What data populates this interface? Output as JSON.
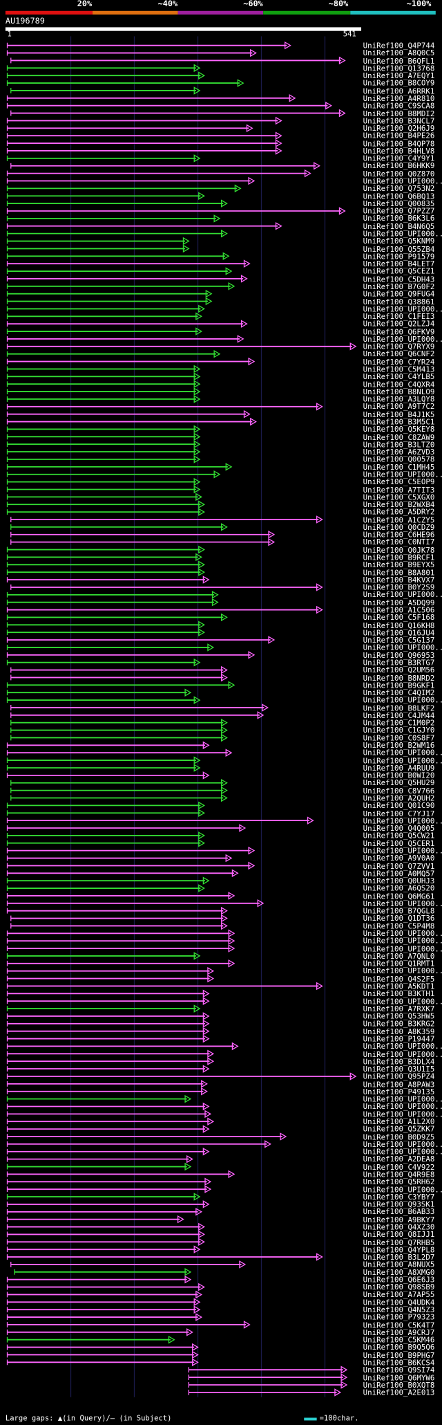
{
  "legend": {
    "labels": [
      "20%",
      "~40%",
      "~60%",
      "~80%",
      "~100%"
    ],
    "colors": [
      "#e01010",
      "#e07010",
      "#a020a0",
      "#10a010",
      "#20c0c0"
    ]
  },
  "query": {
    "id": "AU196789",
    "start": "1",
    "end": "541"
  },
  "colors": {
    "magenta": "#ff66ff",
    "green": "#33dd33",
    "grid": "#1a1a4a"
  },
  "hits": [
    {
      "label": "UniRef100_Q4P744",
      "c": "m",
      "s": 8,
      "e": 320
    },
    {
      "label": "UniRef100_A8Q0C5",
      "c": "m",
      "s": 8,
      "e": 282
    },
    {
      "label": "UniRef100_B6QFL1",
      "c": "m",
      "s": 12,
      "e": 380
    },
    {
      "label": "UniRef100_Q13768",
      "c": "g",
      "s": 8,
      "e": 220
    },
    {
      "label": "UniRef100_A7EQY1",
      "c": "g",
      "s": 8,
      "e": 225
    },
    {
      "label": "UniRef100_B8COY9",
      "c": "g",
      "s": 8,
      "e": 268
    },
    {
      "label": "UniRef100_A6RRK1",
      "c": "g",
      "s": 12,
      "e": 220
    },
    {
      "label": "UniRef100_A4R810",
      "c": "m",
      "s": 8,
      "e": 325
    },
    {
      "label": "UniRef100_C9SCA8",
      "c": "m",
      "s": 8,
      "e": 365
    },
    {
      "label": "UniRef100_B8MDI2",
      "c": "m",
      "s": 12,
      "e": 380
    },
    {
      "label": "UniRef100_B3NCL7",
      "c": "m",
      "s": 8,
      "e": 310
    },
    {
      "label": "UniRef100_Q2H6J9",
      "c": "m",
      "s": 8,
      "e": 278
    },
    {
      "label": "UniRef100_B4PE26",
      "c": "m",
      "s": 8,
      "e": 310
    },
    {
      "label": "UniRef100_B4QP78",
      "c": "m",
      "s": 8,
      "e": 310
    },
    {
      "label": "UniRef100_B4HLV8",
      "c": "m",
      "s": 8,
      "e": 310
    },
    {
      "label": "UniRef100_C4Y9Y1",
      "c": "g",
      "s": 8,
      "e": 220
    },
    {
      "label": "UniRef100_B6HKK9",
      "c": "m",
      "s": 12,
      "e": 352
    },
    {
      "label": "UniRef100_Q0Z870",
      "c": "m",
      "s": 8,
      "e": 342
    },
    {
      "label": "UniRef100_UPI000...",
      "c": "m",
      "s": 8,
      "e": 280
    },
    {
      "label": "UniRef100_Q753N2",
      "c": "g",
      "s": 8,
      "e": 265
    },
    {
      "label": "UniRef100_Q6BQ13",
      "c": "g",
      "s": 8,
      "e": 225
    },
    {
      "label": "UniRef100_Q00835",
      "c": "g",
      "s": 8,
      "e": 250
    },
    {
      "label": "UniRef100_Q7PZZ7",
      "c": "m",
      "s": 8,
      "e": 380
    },
    {
      "label": "UniRef100_B6K3L6",
      "c": "g",
      "s": 8,
      "e": 242
    },
    {
      "label": "UniRef100_B4N6Q5",
      "c": "m",
      "s": 8,
      "e": 310
    },
    {
      "label": "UniRef100_UPI000...",
      "c": "g",
      "s": 8,
      "e": 250
    },
    {
      "label": "UniRef100_Q5KNM9",
      "c": "g",
      "s": 8,
      "e": 208
    },
    {
      "label": "UniRef100_Q55ZB4",
      "c": "g",
      "s": 8,
      "e": 208
    },
    {
      "label": "UniRef100_P91579",
      "c": "g",
      "s": 8,
      "e": 252
    },
    {
      "label": "UniRef100_B4LET7",
      "c": "m",
      "s": 8,
      "e": 275
    },
    {
      "label": "UniRef100_Q5CEZ1",
      "c": "g",
      "s": 8,
      "e": 255
    },
    {
      "label": "UniRef100_C5DH43",
      "c": "m",
      "s": 8,
      "e": 272
    },
    {
      "label": "UniRef100_B7G0F2",
      "c": "g",
      "s": 8,
      "e": 258
    },
    {
      "label": "UniRef100_Q9FUG4",
      "c": "g",
      "s": 8,
      "e": 233
    },
    {
      "label": "UniRef100_Q38861",
      "c": "g",
      "s": 8,
      "e": 233
    },
    {
      "label": "UniRef100_UPI000...",
      "c": "g",
      "s": 8,
      "e": 225
    },
    {
      "label": "UniRef100_C1FEI3",
      "c": "g",
      "s": 8,
      "e": 222
    },
    {
      "label": "UniRef100_Q2LZJ4",
      "c": "m",
      "s": 8,
      "e": 272
    },
    {
      "label": "UniRef100_Q6FKV9",
      "c": "g",
      "s": 8,
      "e": 222
    },
    {
      "label": "UniRef100_UPI000...",
      "c": "m",
      "s": 8,
      "e": 268
    },
    {
      "label": "UniRef100_Q7RYX9",
      "c": "m",
      "s": 8,
      "e": 392
    },
    {
      "label": "UniRef100_Q6CNF2",
      "c": "g",
      "s": 8,
      "e": 242
    },
    {
      "label": "UniRef100_C7YR24",
      "c": "m",
      "s": 8,
      "e": 280
    },
    {
      "label": "UniRef100_C5M413",
      "c": "g",
      "s": 8,
      "e": 220
    },
    {
      "label": "UniRef100_C4YLB5",
      "c": "g",
      "s": 8,
      "e": 220
    },
    {
      "label": "UniRef100_C4QXR4",
      "c": "g",
      "s": 8,
      "e": 220
    },
    {
      "label": "UniRef100_B8NLO9",
      "c": "g",
      "s": 8,
      "e": 220
    },
    {
      "label": "UniRef100_A3LQY8",
      "c": "g",
      "s": 8,
      "e": 220
    },
    {
      "label": "UniRef100_A9T7C2",
      "c": "m",
      "s": 8,
      "e": 355
    },
    {
      "label": "UniRef100_B4J1K5",
      "c": "m",
      "s": 8,
      "e": 275
    },
    {
      "label": "UniRef100_B3M5C1",
      "c": "m",
      "s": 8,
      "e": 282
    },
    {
      "label": "UniRef100_Q5KEY8",
      "c": "g",
      "s": 8,
      "e": 220
    },
    {
      "label": "UniRef100_C8ZAW9",
      "c": "g",
      "s": 8,
      "e": 220
    },
    {
      "label": "UniRef100_B3LTZ0",
      "c": "g",
      "s": 8,
      "e": 220
    },
    {
      "label": "UniRef100_A6ZVD3",
      "c": "g",
      "s": 8,
      "e": 220
    },
    {
      "label": "UniRef100_Q00578",
      "c": "g",
      "s": 8,
      "e": 220
    },
    {
      "label": "UniRef100_C1MH45",
      "c": "g",
      "s": 8,
      "e": 255
    },
    {
      "label": "UniRef100_UPI000...",
      "c": "g",
      "s": 8,
      "e": 242
    },
    {
      "label": "UniRef100_C5EOP9",
      "c": "g",
      "s": 8,
      "e": 220
    },
    {
      "label": "UniRef100_A7TIT3",
      "c": "g",
      "s": 8,
      "e": 220
    },
    {
      "label": "UniRef100_C5XGX0",
      "c": "g",
      "s": 8,
      "e": 222
    },
    {
      "label": "UniRef100_B2WXB4",
      "c": "g",
      "s": 8,
      "e": 225
    },
    {
      "label": "UniRef100_A5DRY2",
      "c": "g",
      "s": 8,
      "e": 225
    },
    {
      "label": "UniRef100_A1CZY5",
      "c": "m",
      "s": 12,
      "e": 355
    },
    {
      "label": "UniRef100_Q0CDZ9",
      "c": "g",
      "s": 12,
      "e": 250
    },
    {
      "label": "UniRef100_C6HE96",
      "c": "m",
      "s": 12,
      "e": 302
    },
    {
      "label": "UniRef100_C0NTI7",
      "c": "m",
      "s": 12,
      "e": 302
    },
    {
      "label": "UniRef100_Q0JK78",
      "c": "g",
      "s": 8,
      "e": 225
    },
    {
      "label": "UniRef100_B9RCF1",
      "c": "g",
      "s": 8,
      "e": 222
    },
    {
      "label": "UniRef100_B9EYX5",
      "c": "g",
      "s": 8,
      "e": 225
    },
    {
      "label": "UniRef100_B8A801",
      "c": "g",
      "s": 8,
      "e": 225
    },
    {
      "label": "UniRef100_B4KVX7",
      "c": "m",
      "s": 8,
      "e": 230
    },
    {
      "label": "UniRef100_B0Y2S9",
      "c": "m",
      "s": 12,
      "e": 355
    },
    {
      "label": "UniRef100_UPI000...",
      "c": "g",
      "s": 8,
      "e": 240
    },
    {
      "label": "UniRef100_A5DQ99",
      "c": "g",
      "s": 8,
      "e": 240
    },
    {
      "label": "UniRef100_A1C506",
      "c": "m",
      "s": 8,
      "e": 355
    },
    {
      "label": "UniRef100_C5F168",
      "c": "g",
      "s": 8,
      "e": 250
    },
    {
      "label": "UniRef100_Q16KH8",
      "c": "g",
      "s": 8,
      "e": 225
    },
    {
      "label": "UniRef100_Q16JU4",
      "c": "g",
      "s": 8,
      "e": 225
    },
    {
      "label": "UniRef100_C5G137",
      "c": "m",
      "s": 8,
      "e": 302
    },
    {
      "label": "UniRef100_UPI000...",
      "c": "g",
      "s": 8,
      "e": 235
    },
    {
      "label": "UniRef100_Q96953",
      "c": "m",
      "s": 8,
      "e": 280
    },
    {
      "label": "UniRef100_B3RTG7",
      "c": "g",
      "s": 8,
      "e": 220
    },
    {
      "label": "UniRef100_Q2UM56",
      "c": "m",
      "s": 12,
      "e": 250
    },
    {
      "label": "UniRef100_B8NRD2",
      "c": "m",
      "s": 12,
      "e": 250
    },
    {
      "label": "UniRef100_B9GKF1",
      "c": "g",
      "s": 8,
      "e": 258
    },
    {
      "label": "UniRef100_C4QIM2",
      "c": "g",
      "s": 8,
      "e": 210
    },
    {
      "label": "UniRef100_UPI000...",
      "c": "g",
      "s": 8,
      "e": 220
    },
    {
      "label": "UniRef100_B8LKF2",
      "c": "m",
      "s": 12,
      "e": 295
    },
    {
      "label": "UniRef100_C4JM44",
      "c": "m",
      "s": 12,
      "e": 290
    },
    {
      "label": "UniRef100_C1M0P2",
      "c": "g",
      "s": 12,
      "e": 250
    },
    {
      "label": "UniRef100_C1GJY0",
      "c": "g",
      "s": 12,
      "e": 250
    },
    {
      "label": "UniRef100_C0S8F7",
      "c": "g",
      "s": 12,
      "e": 250
    },
    {
      "label": "UniRef100_B2WM16",
      "c": "m",
      "s": 8,
      "e": 230
    },
    {
      "label": "UniRef100_UPI000...",
      "c": "m",
      "s": 8,
      "e": 255
    },
    {
      "label": "UniRef100_UPI000...",
      "c": "g",
      "s": 8,
      "e": 220
    },
    {
      "label": "UniRef100_A4RUU9",
      "c": "g",
      "s": 8,
      "e": 220
    },
    {
      "label": "UniRef100_B0WI20",
      "c": "m",
      "s": 8,
      "e": 230
    },
    {
      "label": "UniRef100_Q5HU29",
      "c": "g",
      "s": 12,
      "e": 250
    },
    {
      "label": "UniRef100_C8V766",
      "c": "g",
      "s": 12,
      "e": 250
    },
    {
      "label": "UniRef100_A2QUH2",
      "c": "g",
      "s": 12,
      "e": 250
    },
    {
      "label": "UniRef100_Q01C90",
      "c": "g",
      "s": 8,
      "e": 225
    },
    {
      "label": "UniRef100_C7YJ17",
      "c": "g",
      "s": 8,
      "e": 225
    },
    {
      "label": "UniRef100_UPI000...",
      "c": "m",
      "s": 8,
      "e": 345
    },
    {
      "label": "UniRef100_Q4Q005",
      "c": "m",
      "s": 8,
      "e": 270
    },
    {
      "label": "UniRef100_Q5CW21",
      "c": "g",
      "s": 8,
      "e": 225
    },
    {
      "label": "UniRef100_Q5CER1",
      "c": "g",
      "s": 8,
      "e": 225
    },
    {
      "label": "UniRef100_UPI000...",
      "c": "m",
      "s": 8,
      "e": 280
    },
    {
      "label": "UniRef100_A9V0A0",
      "c": "m",
      "s": 8,
      "e": 255
    },
    {
      "label": "UniRef100_Q7ZVV1",
      "c": "m",
      "s": 8,
      "e": 280
    },
    {
      "label": "UniRef100_A0MQ57",
      "c": "m",
      "s": 8,
      "e": 262
    },
    {
      "label": "UniRef100_Q0UHJ3",
      "c": "g",
      "s": 8,
      "e": 230
    },
    {
      "label": "UniRef100_A6QS20",
      "c": "g",
      "s": 8,
      "e": 225
    },
    {
      "label": "UniRef100_Q6MG61",
      "c": "m",
      "s": 8,
      "e": 258
    },
    {
      "label": "UniRef100_UPI000...",
      "c": "m",
      "s": 8,
      "e": 290
    },
    {
      "label": "UniRef100_B7QGL8",
      "c": "m",
      "s": 8,
      "e": 250
    },
    {
      "label": "UniRef100_Q1DT36",
      "c": "m",
      "s": 12,
      "e": 250
    },
    {
      "label": "UniRef100_C5P4M8",
      "c": "m",
      "s": 12,
      "e": 250
    },
    {
      "label": "UniRef100_UPI000...",
      "c": "m",
      "s": 8,
      "e": 258
    },
    {
      "label": "UniRef100_UPI000...",
      "c": "m",
      "s": 8,
      "e": 258
    },
    {
      "label": "UniRef100_UPI000...",
      "c": "m",
      "s": 8,
      "e": 258
    },
    {
      "label": "UniRef100_A7QNL0",
      "c": "g",
      "s": 8,
      "e": 220
    },
    {
      "label": "UniRef100_Q1RMT1",
      "c": "m",
      "s": 8,
      "e": 258
    },
    {
      "label": "UniRef100_UPI000...",
      "c": "m",
      "s": 8,
      "e": 235
    },
    {
      "label": "UniRef100_Q4S2F5",
      "c": "m",
      "s": 8,
      "e": 235
    },
    {
      "label": "UniRef100_A5KDT1",
      "c": "m",
      "s": 8,
      "e": 355
    },
    {
      "label": "UniRef100_B3KTH1",
      "c": "m",
      "s": 8,
      "e": 230
    },
    {
      "label": "UniRef100_UPI000...",
      "c": "m",
      "s": 8,
      "e": 230
    },
    {
      "label": "UniRef100_A7RXK7",
      "c": "g",
      "s": 8,
      "e": 220
    },
    {
      "label": "UniRef100_Q53HW5",
      "c": "m",
      "s": 8,
      "e": 230
    },
    {
      "label": "UniRef100_B3KRG2",
      "c": "m",
      "s": 8,
      "e": 230
    },
    {
      "label": "UniRef100_A8K359",
      "c": "m",
      "s": 8,
      "e": 230
    },
    {
      "label": "UniRef100_P19447",
      "c": "m",
      "s": 8,
      "e": 230
    },
    {
      "label": "UniRef100_UPI000...",
      "c": "m",
      "s": 8,
      "e": 262
    },
    {
      "label": "UniRef100_UPI000...",
      "c": "m",
      "s": 8,
      "e": 235
    },
    {
      "label": "UniRef100_B3DLX4",
      "c": "m",
      "s": 8,
      "e": 235
    },
    {
      "label": "UniRef100_Q3U1I5",
      "c": "m",
      "s": 8,
      "e": 230
    },
    {
      "label": "UniRef100_Q95PZ4",
      "c": "m",
      "s": 8,
      "e": 392
    },
    {
      "label": "UniRef100_A8PAW3",
      "c": "m",
      "s": 8,
      "e": 228
    },
    {
      "label": "UniRef100_P49135",
      "c": "m",
      "s": 8,
      "e": 228
    },
    {
      "label": "UniRef100_UPI000...",
      "c": "g",
      "s": 8,
      "e": 210
    },
    {
      "label": "UniRef100_UPI000...",
      "c": "m",
      "s": 8,
      "e": 230
    },
    {
      "label": "UniRef100_UPI000...",
      "c": "m",
      "s": 8,
      "e": 232
    },
    {
      "label": "UniRef100_A1L2X0",
      "c": "m",
      "s": 8,
      "e": 235
    },
    {
      "label": "UniRef100_Q5ZKK7",
      "c": "m",
      "s": 8,
      "e": 230
    },
    {
      "label": "UniRef100_B0D9Z5",
      "c": "m",
      "s": 8,
      "e": 315
    },
    {
      "label": "UniRef100_UPI000...",
      "c": "m",
      "s": 8,
      "e": 298
    },
    {
      "label": "UniRef100_UPI000...",
      "c": "m",
      "s": 8,
      "e": 230
    },
    {
      "label": "UniRef100_A2DEA8",
      "c": "m",
      "s": 8,
      "e": 212
    },
    {
      "label": "UniRef100_C4V922",
      "c": "g",
      "s": 8,
      "e": 210
    },
    {
      "label": "UniRef100_Q4R9E8",
      "c": "m",
      "s": 8,
      "e": 258
    },
    {
      "label": "UniRef100_Q5RH62",
      "c": "m",
      "s": 8,
      "e": 232
    },
    {
      "label": "UniRef100_UPI000...",
      "c": "m",
      "s": 8,
      "e": 232
    },
    {
      "label": "UniRef100_C3YBY7",
      "c": "g",
      "s": 8,
      "e": 220
    },
    {
      "label": "UniRef100_Q93SK1",
      "c": "m",
      "s": 8,
      "e": 230
    },
    {
      "label": "UniRef100_B6AB33",
      "c": "m",
      "s": 8,
      "e": 222
    },
    {
      "label": "UniRef100_A9BKY7",
      "c": "m",
      "s": 8,
      "e": 202
    },
    {
      "label": "UniRef100_Q4XZ30",
      "c": "m",
      "s": 8,
      "e": 225
    },
    {
      "label": "UniRef100_Q8IJJ1",
      "c": "m",
      "s": 8,
      "e": 225
    },
    {
      "label": "UniRef100_Q7RHB5",
      "c": "m",
      "s": 8,
      "e": 225
    },
    {
      "label": "UniRef100_Q4YPL8",
      "c": "m",
      "s": 8,
      "e": 220
    },
    {
      "label": "UniRef100_B3L2D7",
      "c": "m",
      "s": 8,
      "e": 355
    },
    {
      "label": "UniRef100_A8NUX5",
      "c": "m",
      "s": 12,
      "e": 270
    },
    {
      "label": "UniRef100_A8XMG0",
      "c": "g",
      "s": 16,
      "e": 210
    },
    {
      "label": "UniRef100_Q6E6J3",
      "c": "m",
      "s": 8,
      "e": 210
    },
    {
      "label": "UniRef100_Q98SB9",
      "c": "m",
      "s": 8,
      "e": 225
    },
    {
      "label": "UniRef100_A7AP55",
      "c": "m",
      "s": 8,
      "e": 222
    },
    {
      "label": "UniRef100_Q4UDK4",
      "c": "m",
      "s": 8,
      "e": 220
    },
    {
      "label": "UniRef100_Q4N5Z3",
      "c": "m",
      "s": 8,
      "e": 220
    },
    {
      "label": "UniRef100_P79323",
      "c": "m",
      "s": 8,
      "e": 222
    },
    {
      "label": "UniRef100_C5K4T7",
      "c": "m",
      "s": 8,
      "e": 275
    },
    {
      "label": "UniRef100_A9CRJ7",
      "c": "m",
      "s": 8,
      "e": 212
    },
    {
      "label": "UniRef100_C5KM46",
      "c": "g",
      "s": 8,
      "e": 192
    },
    {
      "label": "UniRef100_B9Q5Q6",
      "c": "m",
      "s": 8,
      "e": 218
    },
    {
      "label": "UniRef100_B9PHG7",
      "c": "m",
      "s": 8,
      "e": 218
    },
    {
      "label": "UniRef100_B6KCS4",
      "c": "m",
      "s": 8,
      "e": 218
    },
    {
      "label": "UniRef100_Q9SI74",
      "c": "m",
      "s": 208,
      "e": 382
    },
    {
      "label": "UniRef100_Q6MYW6",
      "c": "m",
      "s": 208,
      "e": 382
    },
    {
      "label": "UniRef100_B0XQT8",
      "c": "m",
      "s": 208,
      "e": 382
    },
    {
      "label": "UniRef100_A2E013",
      "c": "m",
      "s": 208,
      "e": 375
    }
  ],
  "footer": {
    "gaps_label": "Large gaps: ▲(in Query)/– (in Subject)",
    "scale_label": "=100char."
  }
}
